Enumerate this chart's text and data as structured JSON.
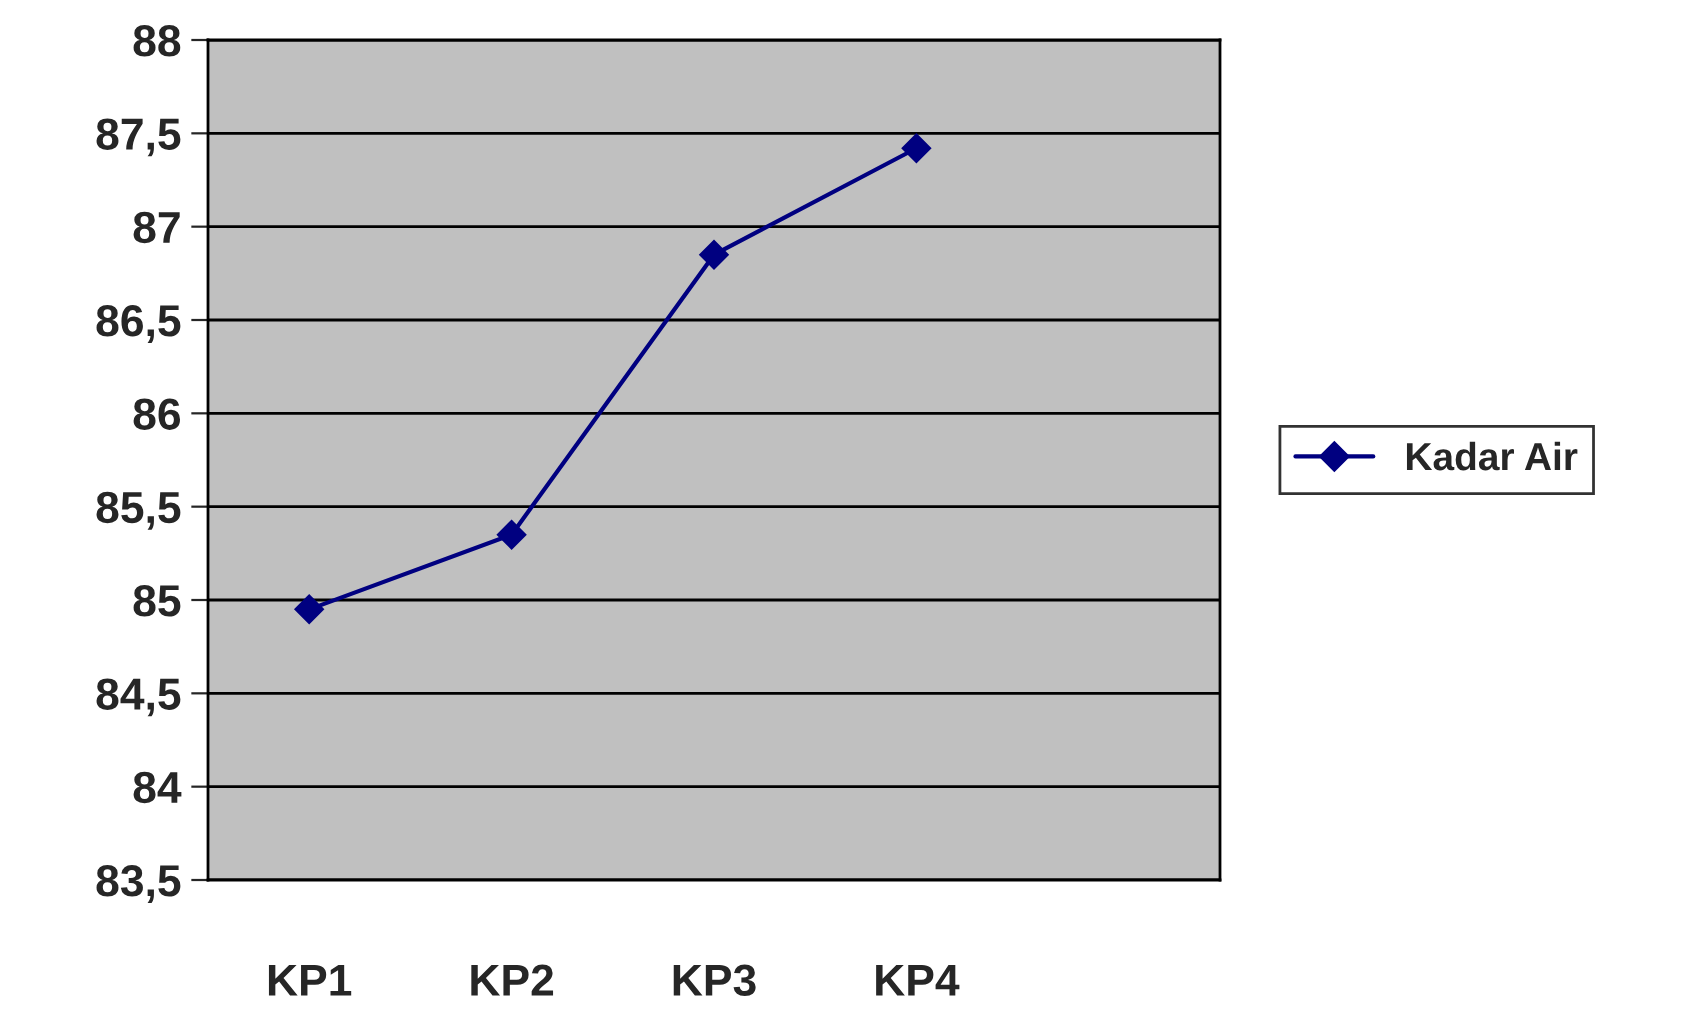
{
  "chart_data": {
    "type": "line",
    "categories": [
      "KP1",
      "KP2",
      "KP3",
      "KP4",
      null
    ],
    "series": [
      {
        "name": "Kadar Air",
        "color": "#000080",
        "values": [
          84.95,
          85.35,
          86.85,
          87.42,
          null
        ]
      }
    ],
    "ylim": [
      83.5,
      88
    ],
    "yticks": [
      {
        "value": 83.5,
        "label": "83,5"
      },
      84,
      {
        "value": 84.5,
        "label": "84,5"
      },
      85,
      {
        "value": 85.5,
        "label": "85,5"
      },
      86,
      {
        "value": 86.5,
        "label": "86,5"
      },
      87,
      {
        "value": 87.5,
        "label": "87,5"
      },
      88
    ],
    "grid": "y",
    "legend": "right",
    "marker": "diamond",
    "line_style": "solid"
  }
}
